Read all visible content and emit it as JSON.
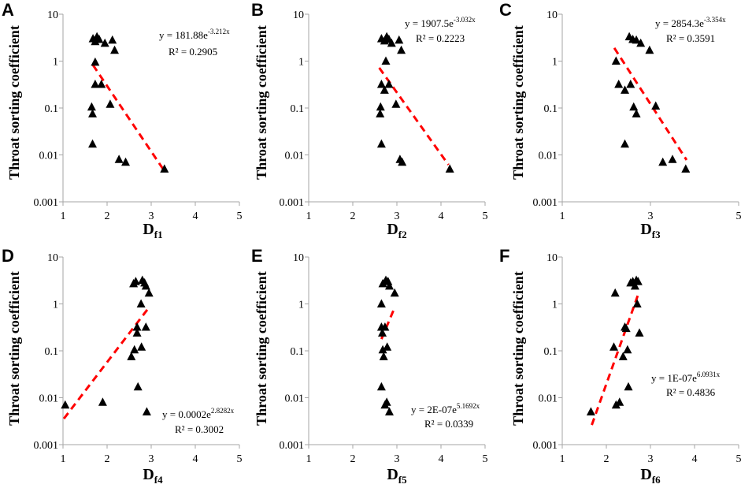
{
  "chart_data": [
    {
      "panel": "A",
      "type": "scatter",
      "xlabel": "D",
      "xlabel_sub": "f1",
      "ylabel": "Throat sorting coefficient",
      "xlim": [
        1,
        5
      ],
      "ylim": [
        0.001,
        10
      ],
      "yscale": "log",
      "x_ticks": [
        "1",
        "2",
        "3",
        "4",
        "5"
      ],
      "y_ticks": [
        "0.001",
        "0.01",
        "0.1",
        "1",
        "10"
      ],
      "equation_base": "y = 181.88e",
      "equation_exp": "-3.212x",
      "r2": "R² = 0.2905",
      "points": [
        [
          1.68,
          3.0
        ],
        [
          1.73,
          2.6
        ],
        [
          1.77,
          3.3
        ],
        [
          1.82,
          2.9
        ],
        [
          1.95,
          2.4
        ],
        [
          2.12,
          2.8
        ],
        [
          2.17,
          1.7
        ],
        [
          1.73,
          0.95
        ],
        [
          1.73,
          0.32
        ],
        [
          1.87,
          0.32
        ],
        [
          2.07,
          0.12
        ],
        [
          1.65,
          0.105
        ],
        [
          1.67,
          0.075
        ],
        [
          1.67,
          0.017
        ],
        [
          2.27,
          0.008
        ],
        [
          2.42,
          0.007
        ],
        [
          3.3,
          0.005
        ]
      ],
      "trend": {
        "a": 181.88,
        "b": -3.212,
        "x0": 1.68,
        "x1": 3.3
      }
    },
    {
      "panel": "B",
      "type": "scatter",
      "xlabel": "D",
      "xlabel_sub": "f2",
      "ylabel": "Throat sorting coefficient",
      "xlim": [
        1,
        5
      ],
      "ylim": [
        0.001,
        10
      ],
      "yscale": "log",
      "x_ticks": [
        "1",
        "2",
        "3",
        "4",
        "5"
      ],
      "y_ticks": [
        "0.001",
        "0.01",
        "0.1",
        "1",
        "10"
      ],
      "equation_base": "y = 1907.5e",
      "equation_exp": "-3.032x",
      "r2": "R² = 0.2223",
      "points": [
        [
          2.65,
          3.0
        ],
        [
          2.72,
          2.7
        ],
        [
          2.77,
          3.3
        ],
        [
          2.82,
          2.9
        ],
        [
          2.88,
          2.4
        ],
        [
          3.05,
          2.8
        ],
        [
          3.1,
          1.7
        ],
        [
          2.75,
          1.0
        ],
        [
          2.65,
          0.32
        ],
        [
          2.72,
          0.24
        ],
        [
          2.82,
          0.32
        ],
        [
          2.98,
          0.12
        ],
        [
          2.63,
          0.105
        ],
        [
          2.62,
          0.075
        ],
        [
          2.65,
          0.017
        ],
        [
          3.07,
          0.008
        ],
        [
          3.12,
          0.007
        ],
        [
          4.2,
          0.005
        ]
      ],
      "trend": {
        "a": 1907.5,
        "b": -3.032,
        "x0": 2.6,
        "x1": 4.17
      }
    },
    {
      "panel": "C",
      "type": "scatter",
      "xlabel": "D",
      "xlabel_sub": "f3",
      "ylabel": "Throat sorting coefficient",
      "xlim": [
        1,
        5
      ],
      "ylim": [
        0.001,
        10
      ],
      "yscale": "log",
      "x_ticks": [
        "1",
        "3",
        "5"
      ],
      "y_ticks": [
        "0.001",
        "0.01",
        "0.1",
        "1",
        "10"
      ],
      "equation_base": "y = 2854.3e",
      "equation_exp": "-3.354x",
      "r2": "R² = 0.3591",
      "points": [
        [
          2.52,
          3.3
        ],
        [
          2.6,
          2.9
        ],
        [
          2.68,
          2.8
        ],
        [
          2.78,
          2.4
        ],
        [
          2.98,
          1.7
        ],
        [
          2.22,
          1.0
        ],
        [
          2.28,
          0.32
        ],
        [
          2.42,
          0.24
        ],
        [
          2.55,
          0.32
        ],
        [
          2.62,
          0.105
        ],
        [
          2.68,
          0.075
        ],
        [
          3.12,
          0.11
        ],
        [
          2.42,
          0.017
        ],
        [
          3.28,
          0.007
        ],
        [
          3.5,
          0.008
        ],
        [
          3.8,
          0.005
        ]
      ],
      "trend": {
        "a": 2854.3,
        "b": -3.354,
        "x0": 2.18,
        "x1": 3.82
      }
    },
    {
      "panel": "D",
      "type": "scatter",
      "xlabel": "D",
      "xlabel_sub": "f4",
      "ylabel": "Throat sorting coefficient",
      "xlim": [
        1,
        5
      ],
      "ylim": [
        0.001,
        10
      ],
      "yscale": "log",
      "x_ticks": [
        "1",
        "2",
        "3",
        "4",
        "5"
      ],
      "y_ticks": [
        "0.001",
        "0.01",
        "0.1",
        "1",
        "10"
      ],
      "equation_base": "y = 0.0002e",
      "equation_exp": "2.8282x",
      "r2": "R² = 0.3002",
      "points": [
        [
          2.6,
          2.7
        ],
        [
          2.65,
          3.0
        ],
        [
          2.8,
          3.2
        ],
        [
          2.85,
          2.8
        ],
        [
          2.88,
          2.4
        ],
        [
          2.95,
          1.7
        ],
        [
          2.77,
          1.0
        ],
        [
          2.68,
          0.32
        ],
        [
          2.88,
          0.32
        ],
        [
          2.68,
          0.24
        ],
        [
          2.78,
          0.12
        ],
        [
          2.62,
          0.105
        ],
        [
          2.55,
          0.075
        ],
        [
          2.7,
          0.017
        ],
        [
          1.05,
          0.007
        ],
        [
          1.9,
          0.008
        ],
        [
          2.9,
          0.005
        ]
      ],
      "trend": {
        "a": 0.0002,
        "b": 2.8282,
        "x0": 1.02,
        "x1": 2.95
      }
    },
    {
      "panel": "E",
      "type": "scatter",
      "xlabel": "D",
      "xlabel_sub": "f5",
      "ylabel": "Throat sorting coefficient",
      "xlim": [
        1,
        5
      ],
      "ylim": [
        0.001,
        10
      ],
      "yscale": "log",
      "x_ticks": [
        "1",
        "2",
        "3",
        "4",
        "5"
      ],
      "y_ticks": [
        "0.001",
        "0.01",
        "0.1",
        "1",
        "10"
      ],
      "equation_base": "y = 2E-07e",
      "equation_exp": "5.1692x",
      "r2": "R² = 0.0339",
      "points": [
        [
          2.68,
          2.7
        ],
        [
          2.75,
          3.2
        ],
        [
          2.8,
          3.0
        ],
        [
          2.83,
          2.4
        ],
        [
          2.95,
          1.7
        ],
        [
          2.65,
          1.0
        ],
        [
          2.65,
          0.32
        ],
        [
          2.67,
          0.24
        ],
        [
          2.73,
          0.32
        ],
        [
          2.68,
          0.105
        ],
        [
          2.78,
          0.12
        ],
        [
          2.7,
          0.075
        ],
        [
          2.65,
          0.017
        ],
        [
          2.73,
          0.007
        ],
        [
          2.77,
          0.008
        ],
        [
          2.83,
          0.005
        ]
      ],
      "trend": {
        "a": 2e-07,
        "b": 5.1692,
        "x0": 2.65,
        "x1": 2.95
      }
    },
    {
      "panel": "F",
      "type": "scatter",
      "xlabel": "D",
      "xlabel_sub": "f6",
      "ylabel": "Throat sorting coefficient",
      "xlim": [
        1,
        5
      ],
      "ylim": [
        0.001,
        10
      ],
      "yscale": "log",
      "x_ticks": [
        "1",
        "2",
        "3",
        "4",
        "5"
      ],
      "y_ticks": [
        "0.001",
        "0.01",
        "0.1",
        "1",
        "10"
      ],
      "equation_base": "y = 1E-07e",
      "equation_exp": "6.0931x",
      "r2": "R² = 0.4836",
      "points": [
        [
          2.55,
          2.8
        ],
        [
          2.6,
          3.0
        ],
        [
          2.68,
          3.2
        ],
        [
          2.72,
          3.0
        ],
        [
          2.65,
          2.4
        ],
        [
          2.2,
          1.7
        ],
        [
          2.7,
          1.0
        ],
        [
          2.42,
          0.32
        ],
        [
          2.45,
          0.3
        ],
        [
          2.75,
          0.24
        ],
        [
          2.17,
          0.12
        ],
        [
          2.48,
          0.105
        ],
        [
          2.38,
          0.075
        ],
        [
          2.5,
          0.017
        ],
        [
          2.22,
          0.007
        ],
        [
          2.3,
          0.008
        ],
        [
          1.65,
          0.005
        ]
      ],
      "trend": {
        "a": 1e-07,
        "b": 6.0931,
        "x0": 1.67,
        "x1": 2.73
      }
    }
  ],
  "colors": {
    "trend": "#ff0000",
    "marker": "#000000",
    "axis": "#a6a6a6"
  }
}
